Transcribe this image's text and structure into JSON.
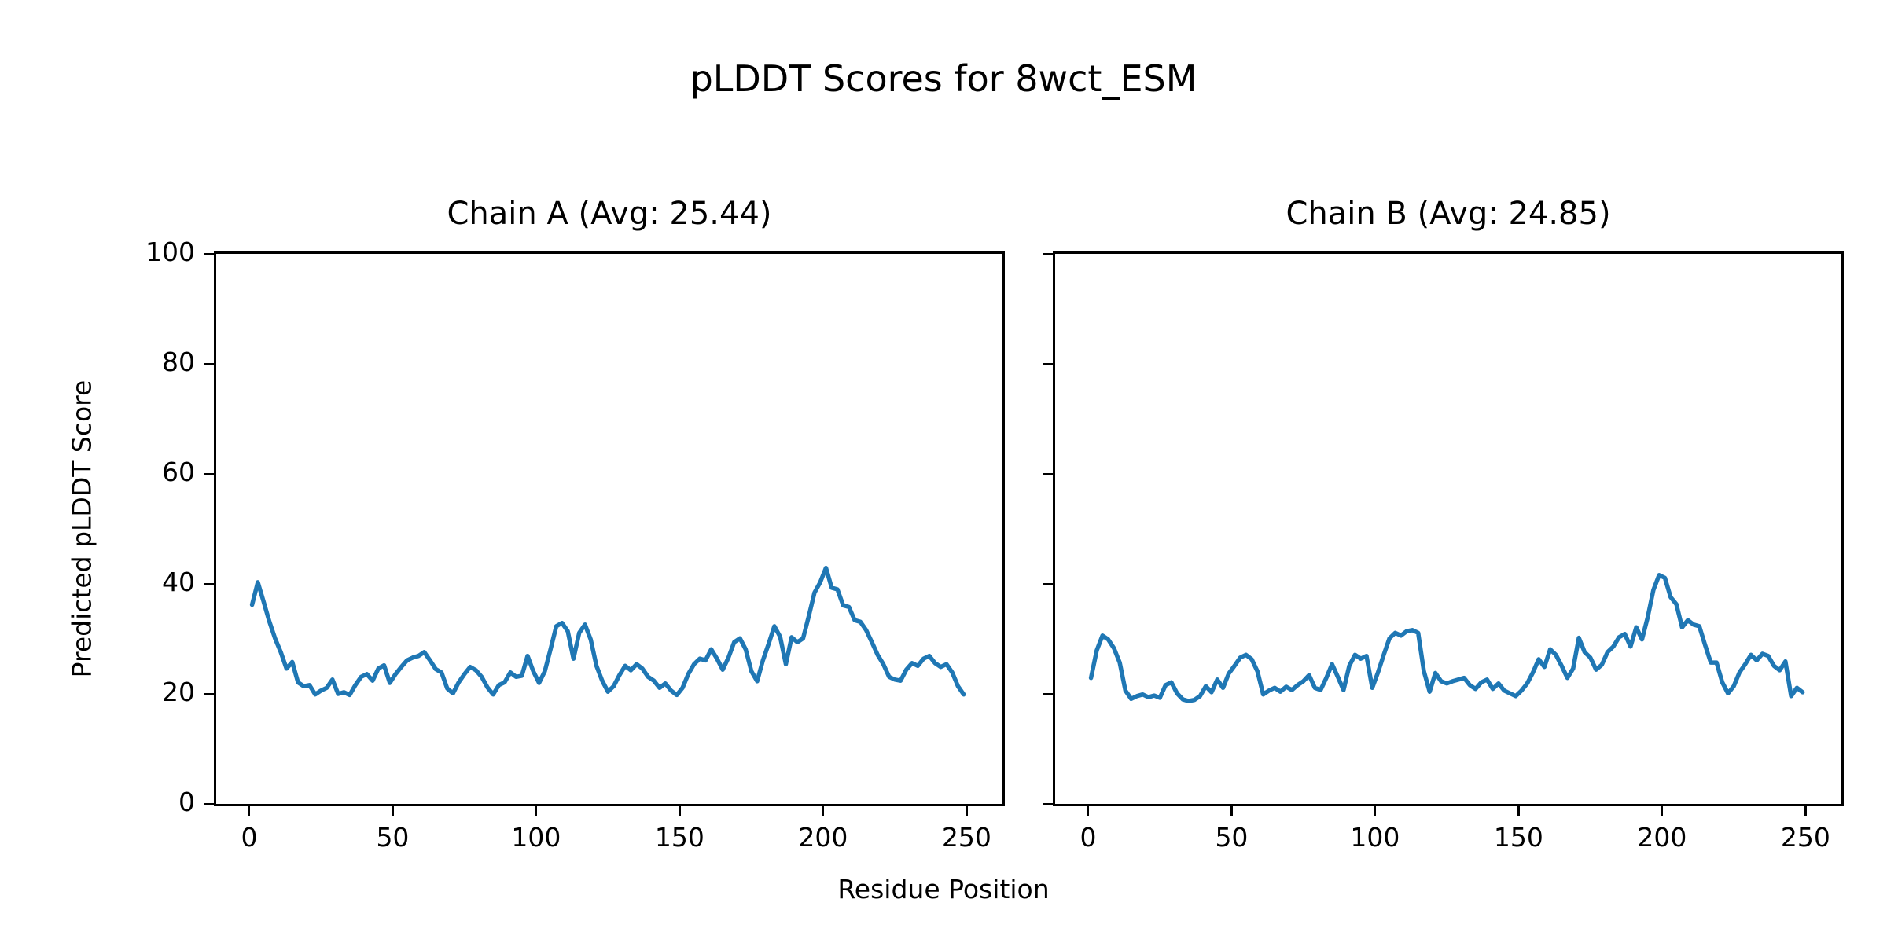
{
  "figure": {
    "title": "pLDDT Scores for 8wct_ESM",
    "xlabel": "Residue Position",
    "ylabel": "Predicted pLDDT Score",
    "background_color": "#ffffff",
    "text_color": "#000000",
    "line_color": "#1f77b4"
  },
  "chart_data": [
    {
      "type": "line",
      "title": "Chain A (Avg: 25.44)",
      "chain": "A",
      "avg_plddt": 25.44,
      "line_color": "#1f77b4",
      "xlabel": "Residue Position",
      "ylabel": "Predicted pLDDT Score",
      "xlim": [
        -11.5,
        262.5
      ],
      "ylim": [
        0,
        100
      ],
      "xticks": [
        0,
        50,
        100,
        150,
        200,
        250
      ],
      "yticks": [
        0,
        20,
        40,
        60,
        80,
        100
      ],
      "show_ytick_labels": true,
      "grid": false,
      "legend": "none",
      "x_start": 1,
      "x_step": 2,
      "values": [
        36.2,
        40.3,
        36.8,
        33.2,
        30.1,
        27.6,
        24.6,
        25.8,
        22.1,
        21.4,
        21.6,
        19.9,
        20.6,
        21.1,
        22.6,
        20.0,
        20.3,
        19.8,
        21.6,
        23.1,
        23.6,
        22.4,
        24.6,
        25.2,
        22.0,
        23.6,
        24.9,
        26.1,
        26.6,
        26.9,
        27.6,
        26.1,
        24.5,
        23.9,
        21.0,
        20.1,
        22.1,
        23.6,
        24.9,
        24.3,
        23.1,
        21.2,
        19.9,
        21.6,
        22.1,
        23.9,
        23.1,
        23.3,
        26.9,
        24.1,
        22.0,
        24.1,
        28.1,
        32.3,
        32.9,
        31.4,
        26.4,
        31.1,
        32.6,
        29.9,
        25.1,
        22.4,
        20.4,
        21.4,
        23.4,
        25.1,
        24.3,
        25.4,
        24.6,
        23.1,
        22.4,
        21.1,
        21.9,
        20.6,
        19.8,
        21.1,
        23.6,
        25.4,
        26.4,
        26.1,
        28.1,
        26.4,
        24.4,
        26.6,
        29.4,
        30.1,
        28.1,
        24.1,
        22.3,
        26.1,
        29.1,
        32.3,
        30.4,
        25.4,
        30.3,
        29.4,
        30.1,
        34.1,
        38.4,
        40.3,
        42.9,
        39.3,
        39.0,
        36.1,
        35.8,
        33.4,
        33.1,
        31.6,
        29.4,
        27.1,
        25.4,
        23.1,
        22.6,
        22.4,
        24.4,
        25.6,
        25.1,
        26.4,
        26.9,
        25.6,
        24.9,
        25.4,
        23.9,
        21.4,
        19.9
      ]
    },
    {
      "type": "line",
      "title": "Chain B (Avg: 24.85)",
      "chain": "B",
      "avg_plddt": 24.85,
      "line_color": "#1f77b4",
      "xlabel": "Residue Position",
      "ylabel": "Predicted pLDDT Score",
      "xlim": [
        -11.5,
        262.5
      ],
      "ylim": [
        0,
        100
      ],
      "xticks": [
        0,
        50,
        100,
        150,
        200,
        250
      ],
      "yticks": [
        0,
        20,
        40,
        60,
        80,
        100
      ],
      "show_ytick_labels": false,
      "grid": false,
      "legend": "none",
      "x_start": 1,
      "x_step": 2,
      "values": [
        22.9,
        27.9,
        30.6,
        29.9,
        28.3,
        25.7,
        20.6,
        19.1,
        19.6,
        19.9,
        19.4,
        19.7,
        19.3,
        21.6,
        22.1,
        20.1,
        19.0,
        18.7,
        18.9,
        19.6,
        21.4,
        20.3,
        22.6,
        21.1,
        23.7,
        25.1,
        26.6,
        27.1,
        26.3,
        24.1,
        19.9,
        20.6,
        21.1,
        20.4,
        21.3,
        20.7,
        21.6,
        22.3,
        23.4,
        21.1,
        20.7,
        22.9,
        25.4,
        23.1,
        20.7,
        25.1,
        27.1,
        26.4,
        26.9,
        21.1,
        23.9,
        27.1,
        30.1,
        31.1,
        30.6,
        31.4,
        31.6,
        31.1,
        24.1,
        20.4,
        23.8,
        22.3,
        21.9,
        22.3,
        22.6,
        22.9,
        21.6,
        20.9,
        22.1,
        22.6,
        20.9,
        21.9,
        20.6,
        20.1,
        19.6,
        20.6,
        21.9,
        23.9,
        26.3,
        24.9,
        28.1,
        27.1,
        25.1,
        22.9,
        24.6,
        30.2,
        27.6,
        26.6,
        24.4,
        25.3,
        27.6,
        28.6,
        30.3,
        30.9,
        28.6,
        32.1,
        29.9,
        33.9,
        38.9,
        41.6,
        41.1,
        37.6,
        36.3,
        32.1,
        33.4,
        32.6,
        32.3,
        28.9,
        25.7,
        25.7,
        22.1,
        20.1,
        21.4,
        23.9,
        25.4,
        27.1,
        26.1,
        27.3,
        26.9,
        25.1,
        24.3,
        25.9,
        19.6,
        21.1,
        20.3
      ]
    }
  ]
}
